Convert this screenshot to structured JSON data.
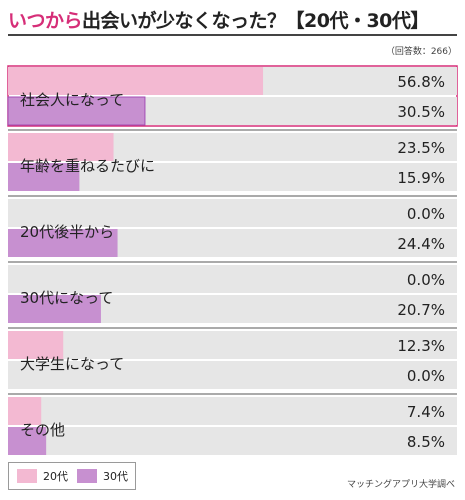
{
  "header": {
    "title_accent": "いつから",
    "title_rest": "出会いが少なくなった？【20代・30代】",
    "respondents_note": "（回答数：266）"
  },
  "legend": {
    "items": [
      {
        "label": "20代",
        "color": "#f3b9d2"
      },
      {
        "label": "30代",
        "color": "#c790d0"
      }
    ]
  },
  "source": "マッチングアプリ大学調べ",
  "chart_data": {
    "type": "bar",
    "orientation": "horizontal",
    "title": "いつから出会いが少なくなった？【20代・30代】",
    "xlim": [
      0,
      100
    ],
    "unit": "%",
    "categories": [
      "社会人になって",
      "年齢を重ねるたびに",
      "20代後半から",
      "30代になって",
      "大学生になって",
      "その他"
    ],
    "value_labels": [
      [
        "56.8%",
        "30.5%"
      ],
      [
        "23.5%",
        "15.9%"
      ],
      [
        "0.0%",
        "24.4%"
      ],
      [
        "0.0%",
        "20.7%"
      ],
      [
        "12.3%",
        "0.0%"
      ],
      [
        "7.4%",
        "8.5%"
      ]
    ],
    "series": [
      {
        "name": "20代",
        "color": "#f3b9d2",
        "values": [
          56.8,
          23.5,
          0.0,
          0.0,
          12.3,
          7.4
        ]
      },
      {
        "name": "30代",
        "color": "#c790d0",
        "values": [
          30.5,
          15.9,
          24.4,
          20.7,
          0.0,
          8.5
        ]
      }
    ],
    "track_color": "#e6e6e6",
    "highlight_category": "社会人になって"
  }
}
